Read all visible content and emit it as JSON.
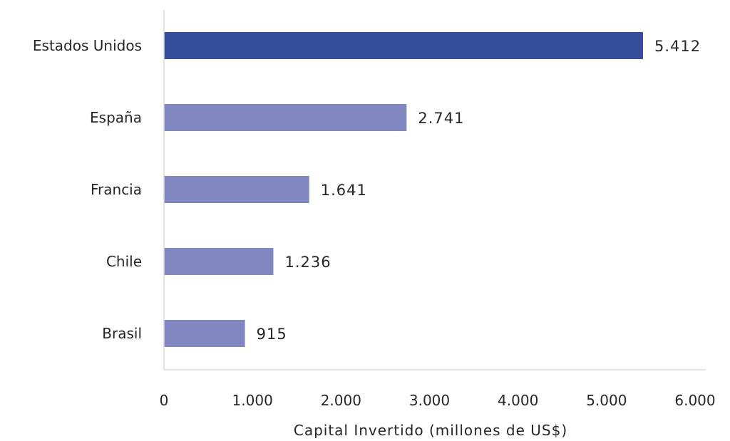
{
  "chart_data": {
    "type": "bar",
    "orientation": "horizontal",
    "categories": [
      "Estados Unidos",
      "España",
      "Francia",
      "Chile",
      "Brasil"
    ],
    "values": [
      5412,
      2741,
      1641,
      1236,
      915
    ],
    "value_labels": [
      "5.412",
      "2.741",
      "1.641",
      "1.236",
      "915"
    ],
    "xlabel": "Capital Invertido (millones de US$)",
    "ylabel": "",
    "title": "",
    "xlim": [
      0,
      6000
    ],
    "x_ticks": [
      0,
      1000,
      2000,
      3000,
      4000,
      5000,
      6000
    ],
    "x_tick_labels": [
      "0",
      "1.000",
      "2.000",
      "3.000",
      "4.000",
      "5.000",
      "6.000"
    ],
    "grid": false,
    "legend": "none",
    "colors": {
      "highlight": "#354D9B",
      "default": "#8187C1",
      "axis": "#D9D9D9",
      "text": "#262626"
    },
    "highlight_index": 0
  }
}
